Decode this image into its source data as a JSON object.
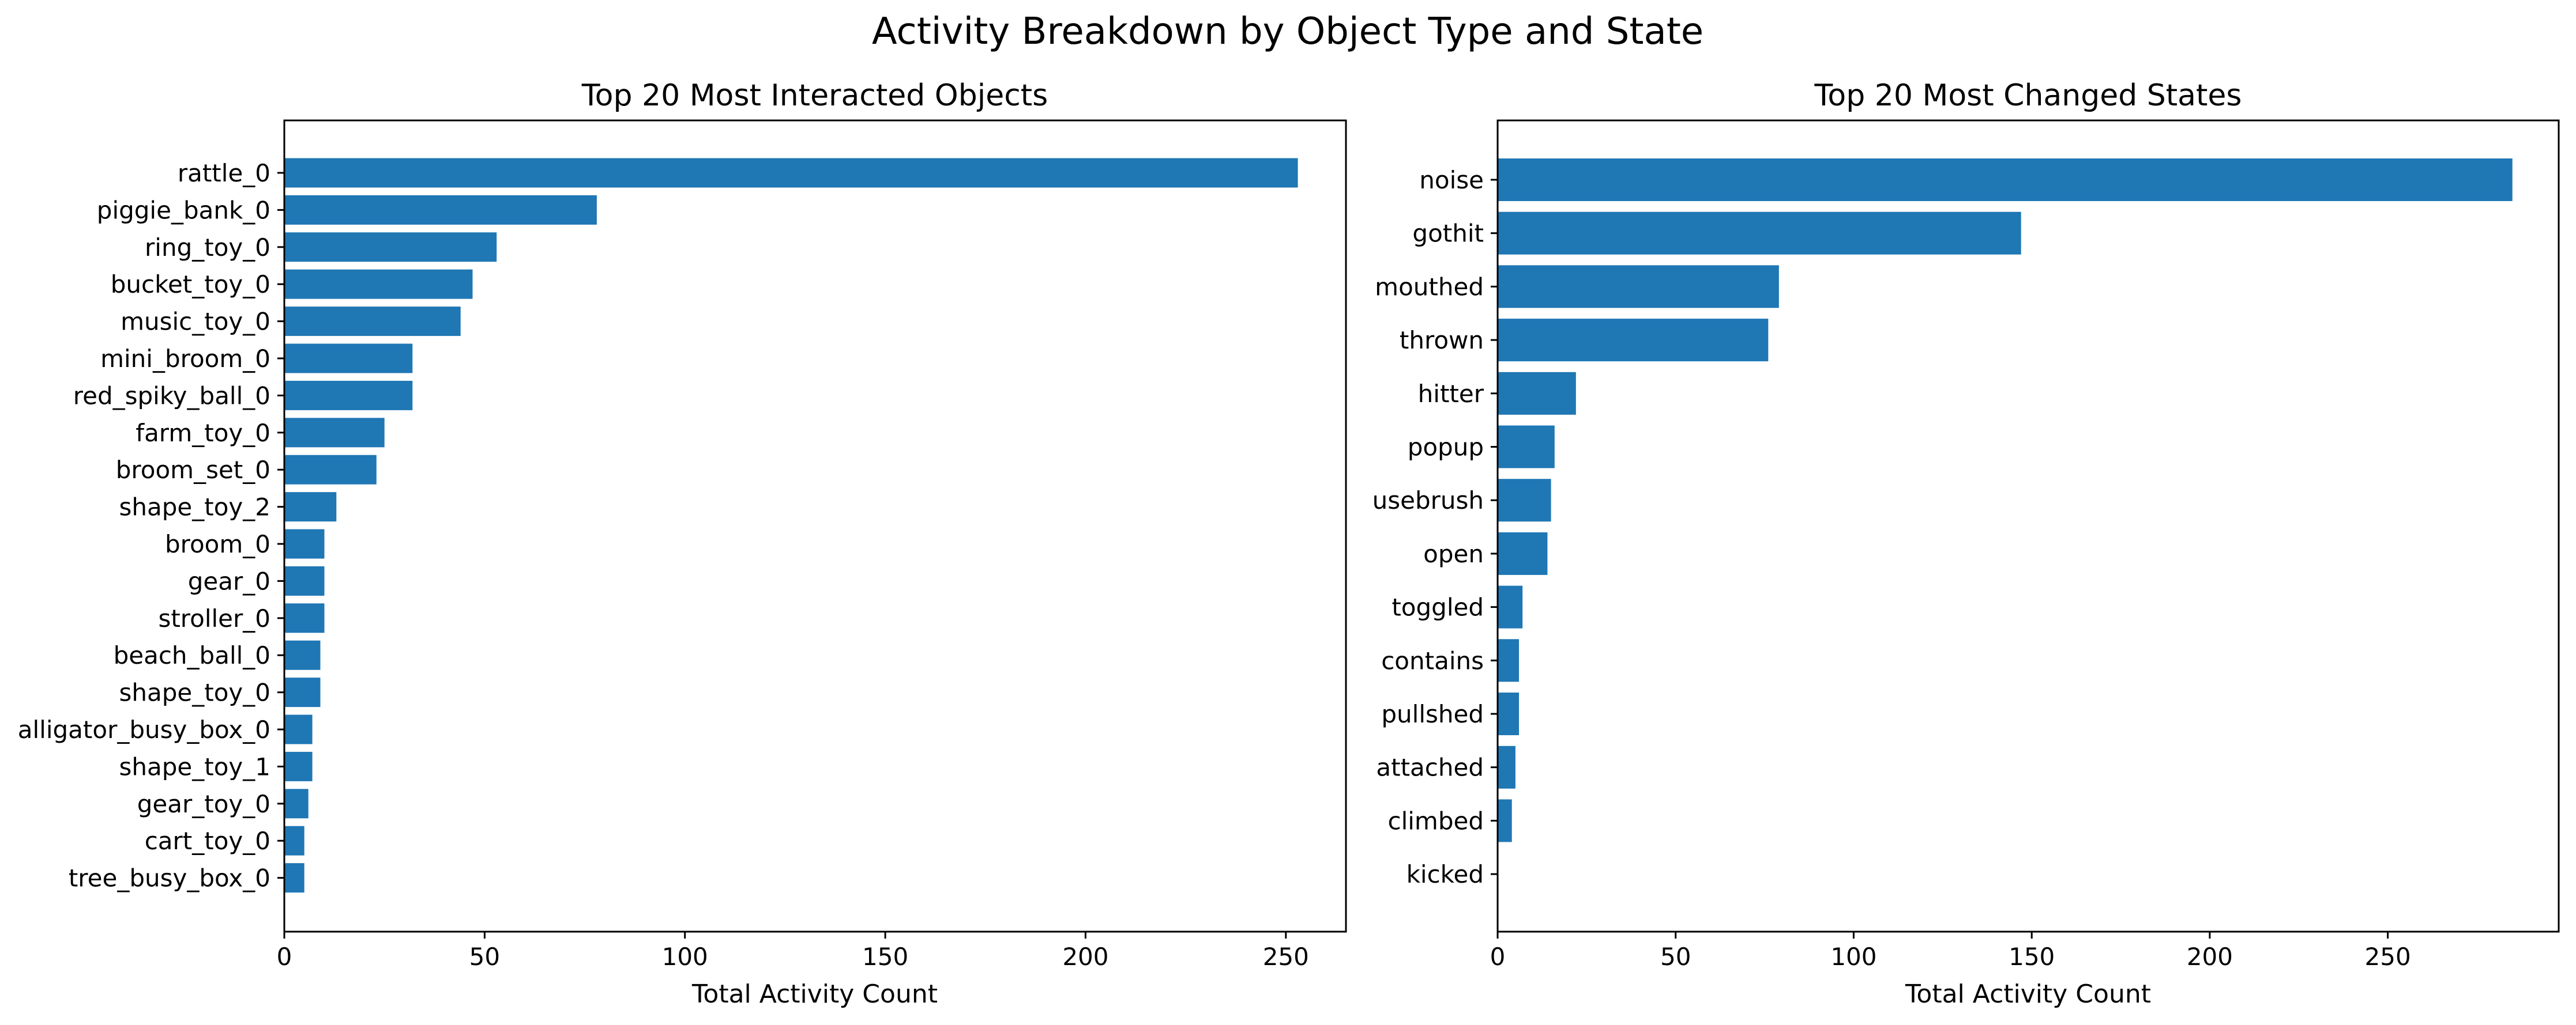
{
  "figure": {
    "title": "Activity Breakdown by Object Type and State",
    "bar_color": "#1f77b4"
  },
  "chart_data": [
    {
      "type": "bar",
      "orientation": "horizontal",
      "title": "Top 20 Most Interacted Objects",
      "xlabel": "Total Activity Count",
      "ylabel": "",
      "xlim": [
        0,
        265
      ],
      "xticks": [
        0,
        50,
        100,
        150,
        200,
        250
      ],
      "grid": false,
      "categories": [
        "rattle_0",
        "piggie_bank_0",
        "ring_toy_0",
        "bucket_toy_0",
        "music_toy_0",
        "mini_broom_0",
        "red_spiky_ball_0",
        "farm_toy_0",
        "broom_set_0",
        "shape_toy_2",
        "broom_0",
        "gear_0",
        "stroller_0",
        "beach_ball_0",
        "shape_toy_0",
        "alligator_busy_box_0",
        "shape_toy_1",
        "gear_toy_0",
        "cart_toy_0",
        "tree_busy_box_0"
      ],
      "values": [
        253,
        78,
        53,
        47,
        44,
        32,
        32,
        25,
        23,
        13,
        10,
        10,
        10,
        9,
        9,
        7,
        7,
        6,
        5,
        5
      ]
    },
    {
      "type": "bar",
      "orientation": "horizontal",
      "title": "Top 20 Most Changed States",
      "xlabel": "Total Activity Count",
      "ylabel": "",
      "xlim": [
        0,
        298
      ],
      "xticks": [
        0,
        50,
        100,
        150,
        200,
        250
      ],
      "grid": false,
      "categories": [
        "noise",
        "gothit",
        "mouthed",
        "thrown",
        "hitter",
        "popup",
        "usebrush",
        "open",
        "toggled",
        "contains",
        "pullshed",
        "attached",
        "climbed",
        "kicked"
      ],
      "values": [
        285,
        147,
        79,
        76,
        22,
        16,
        15,
        14,
        7,
        6,
        6,
        5,
        4,
        0
      ]
    }
  ]
}
